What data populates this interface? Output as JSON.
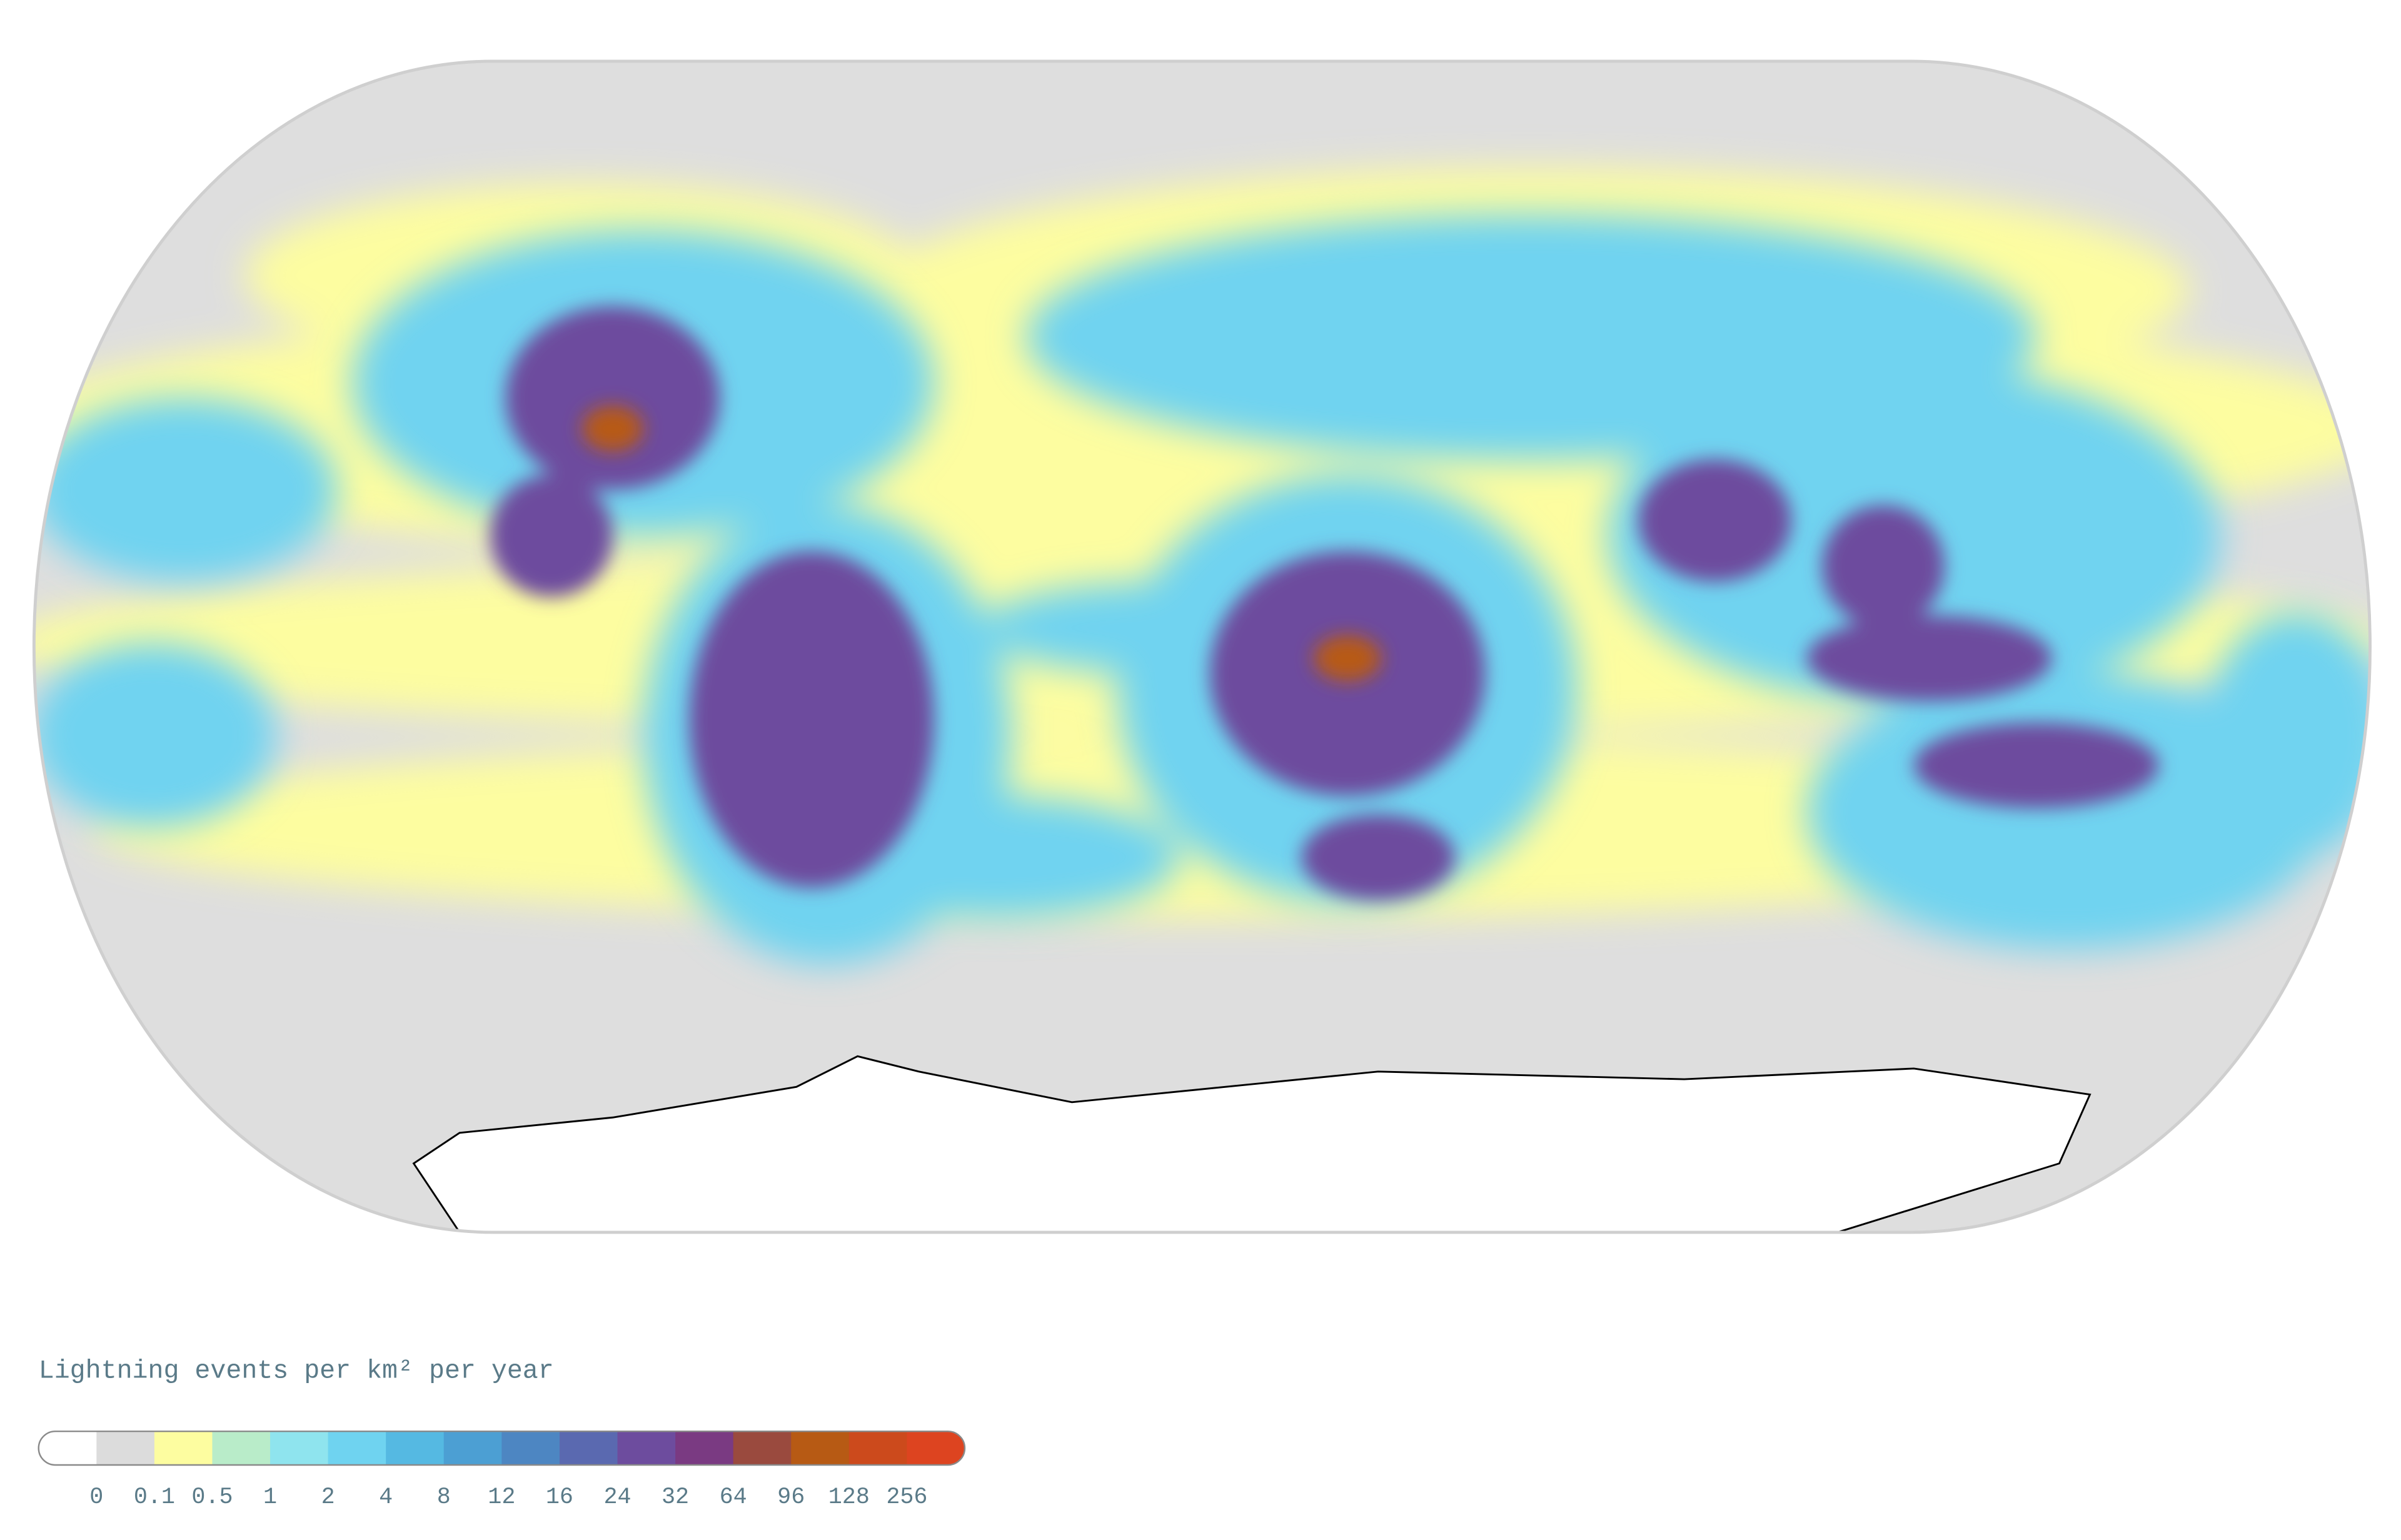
{
  "legend": {
    "title": "Lightning events per km² per year",
    "colors": [
      "#ffffff",
      "#dcdcdc",
      "#fdfda0",
      "#b9ecc9",
      "#8fe4ee",
      "#6fd3f0",
      "#55b9e2",
      "#4c9fd3",
      "#4d86c2",
      "#5a69b0",
      "#6d4c9e",
      "#7a3a82",
      "#9a4a3e",
      "#b75a14",
      "#cc4a1c",
      "#dd4420"
    ],
    "ticks": [
      0,
      0.1,
      0.5,
      1,
      2,
      4,
      8,
      12,
      16,
      24,
      32,
      64,
      96,
      128,
      256
    ]
  }
}
